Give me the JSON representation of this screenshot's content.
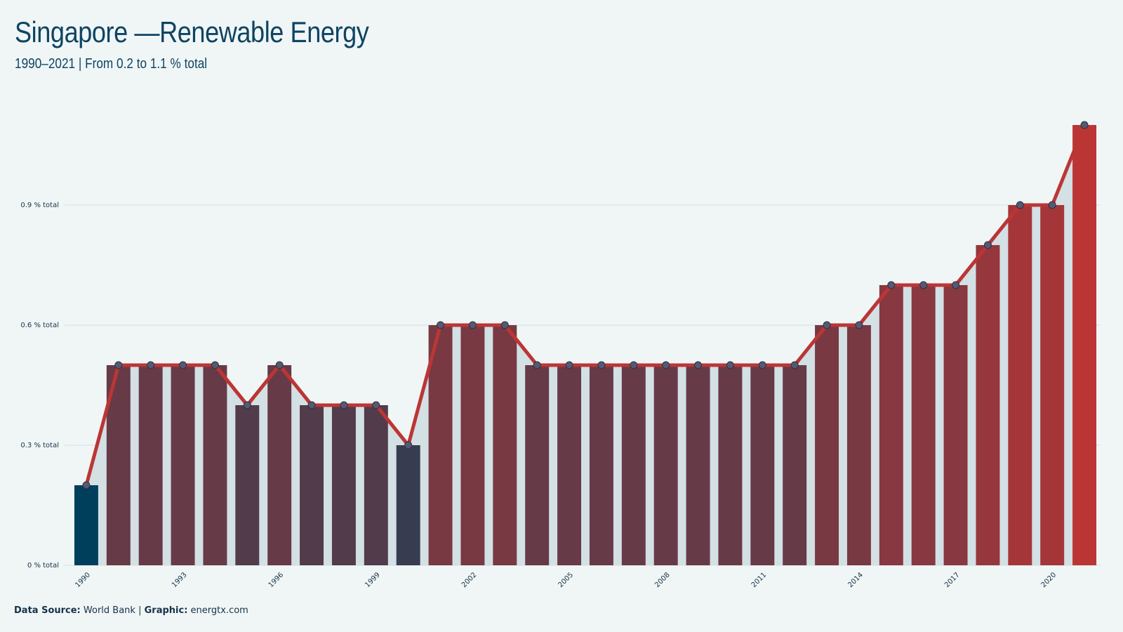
{
  "header": {
    "title": "Singapore —Renewable Energy",
    "subtitle": "1990–2021 | From 0.2 to 1.1 % total"
  },
  "footer": {
    "source_label": "Data Source:",
    "source_value": "World Bank",
    "separator": "|",
    "graphic_label": "Graphic:",
    "graphic_value": "energtx.com"
  },
  "colors": {
    "background": "#f0f6f6",
    "low": "#003f5c",
    "high": "#bc3535",
    "line": "#bc3535",
    "area": "#d3e0e4",
    "grid": "#d4dde2",
    "text": "#0e4463"
  },
  "chart_data": {
    "type": "bar",
    "x": [
      1990,
      1991,
      1992,
      1993,
      1994,
      1995,
      1996,
      1997,
      1998,
      1999,
      2000,
      2001,
      2002,
      2003,
      2004,
      2005,
      2006,
      2007,
      2008,
      2009,
      2010,
      2011,
      2012,
      2013,
      2014,
      2015,
      2016,
      2017,
      2018,
      2019,
      2020,
      2021
    ],
    "values": [
      0.2,
      0.5,
      0.5,
      0.5,
      0.5,
      0.4,
      0.5,
      0.4,
      0.4,
      0.4,
      0.3,
      0.6,
      0.6,
      0.6,
      0.5,
      0.5,
      0.5,
      0.5,
      0.5,
      0.5,
      0.5,
      0.5,
      0.5,
      0.6,
      0.6,
      0.7,
      0.7,
      0.7,
      0.8,
      0.9,
      0.9,
      1.1
    ],
    "x_tick_labels": [
      "1990",
      "1993",
      "1996",
      "1999",
      "2002",
      "2005",
      "2008",
      "2011",
      "2014",
      "2017",
      "2020"
    ],
    "y_ticks": [
      0,
      0.3,
      0.6,
      0.9
    ],
    "y_tick_labels": [
      "0 % total",
      "0.3 % total",
      "0.6 % total",
      "0.9 % total"
    ],
    "ylim": [
      0,
      1.1
    ],
    "overlay": "line with markers",
    "grid": true
  }
}
